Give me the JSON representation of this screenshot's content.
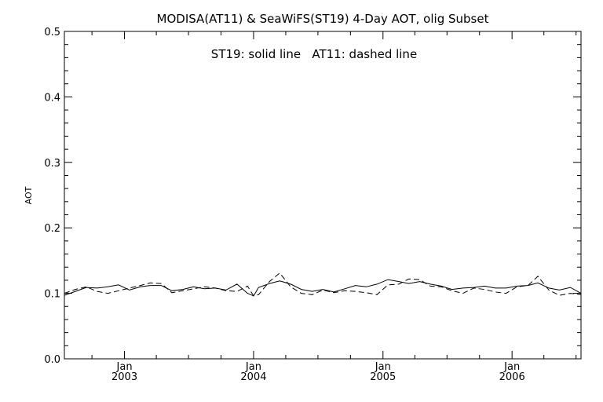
{
  "chart_data": {
    "type": "line",
    "title": "MODISA(AT11) & SeaWiFS(ST19) 4-Day AOT, olig Subset",
    "annotation": "ST19: solid line   AT11: dashed line",
    "xlabel": "",
    "ylabel": "AOT",
    "ylim": [
      0.0,
      0.5
    ],
    "xlim": [
      "2002-07-15",
      "2006-07-15"
    ],
    "yticks": [
      "0.0",
      "0.1",
      "0.2",
      "0.3",
      "0.4",
      "0.5"
    ],
    "xticks": [
      {
        "date": "2003-01-01",
        "month": "Jan",
        "year": "2003"
      },
      {
        "date": "2004-01-01",
        "month": "Jan",
        "year": "2004"
      },
      {
        "date": "2005-01-01",
        "month": "Jan",
        "year": "2005"
      },
      {
        "date": "2006-01-01",
        "month": "Jan",
        "year": "2006"
      }
    ],
    "grid": false,
    "legend": "none",
    "series": [
      {
        "style": "solid",
        "x": [
          "2002-07-15",
          "2002-08-15",
          "2002-09-15",
          "2002-10-15",
          "2002-11-15",
          "2002-12-15",
          "2003-01-15",
          "2003-02-15",
          "2003-03-15",
          "2003-04-15",
          "2003-05-15",
          "2003-06-15",
          "2003-07-15",
          "2003-08-15",
          "2003-09-15",
          "2003-10-15",
          "2003-11-15",
          "2003-12-15",
          "2004-01-01",
          "2004-01-15",
          "2004-02-15",
          "2004-03-15",
          "2004-04-15",
          "2004-05-15",
          "2004-06-15",
          "2004-07-15",
          "2004-08-15",
          "2004-09-15",
          "2004-10-15",
          "2004-11-15",
          "2004-12-15",
          "2005-01-15",
          "2005-02-15",
          "2005-03-15",
          "2005-04-15",
          "2005-05-15",
          "2005-06-15",
          "2005-07-15",
          "2005-08-15",
          "2005-09-15",
          "2005-10-15",
          "2005-11-15",
          "2005-12-15",
          "2006-01-15",
          "2006-02-15",
          "2006-03-15",
          "2006-04-15",
          "2006-05-15",
          "2006-06-15",
          "2006-07-15"
        ],
        "y": [
          0.097,
          0.103,
          0.109,
          0.108,
          0.11,
          0.113,
          0.105,
          0.11,
          0.112,
          0.112,
          0.104,
          0.106,
          0.11,
          0.107,
          0.108,
          0.105,
          0.114,
          0.1,
          0.096,
          0.109,
          0.115,
          0.119,
          0.114,
          0.106,
          0.103,
          0.106,
          0.102,
          0.107,
          0.112,
          0.11,
          0.114,
          0.121,
          0.118,
          0.115,
          0.118,
          0.114,
          0.111,
          0.106,
          0.108,
          0.109,
          0.111,
          0.108,
          0.108,
          0.111,
          0.112,
          0.116,
          0.108,
          0.105,
          0.109,
          0.1
        ]
      },
      {
        "style": "dashed",
        "x": [
          "2002-07-15",
          "2002-08-15",
          "2002-09-15",
          "2002-10-15",
          "2002-11-15",
          "2002-12-15",
          "2003-01-15",
          "2003-02-15",
          "2003-03-15",
          "2003-04-15",
          "2003-05-15",
          "2003-06-15",
          "2003-07-15",
          "2003-08-15",
          "2003-09-15",
          "2003-10-15",
          "2003-11-15",
          "2003-12-15",
          "2004-01-01",
          "2004-01-15",
          "2004-02-15",
          "2004-03-15",
          "2004-04-15",
          "2004-05-15",
          "2004-06-15",
          "2004-07-15",
          "2004-08-15",
          "2004-09-15",
          "2004-10-15",
          "2004-11-15",
          "2004-12-15",
          "2005-01-15",
          "2005-02-15",
          "2005-03-15",
          "2005-04-15",
          "2005-05-15",
          "2005-06-15",
          "2005-07-15",
          "2005-08-15",
          "2005-09-15",
          "2005-10-15",
          "2005-11-15",
          "2005-12-15",
          "2006-01-15",
          "2006-02-15",
          "2006-03-15",
          "2006-04-15",
          "2006-05-15",
          "2006-06-15",
          "2006-07-15"
        ],
        "y": [
          0.1,
          0.106,
          0.11,
          0.103,
          0.1,
          0.104,
          0.108,
          0.112,
          0.116,
          0.115,
          0.101,
          0.104,
          0.107,
          0.11,
          0.108,
          0.104,
          0.103,
          0.111,
          0.096,
          0.098,
          0.118,
          0.131,
          0.11,
          0.1,
          0.098,
          0.105,
          0.101,
          0.104,
          0.103,
          0.101,
          0.098,
          0.113,
          0.114,
          0.122,
          0.121,
          0.111,
          0.11,
          0.104,
          0.1,
          0.108,
          0.106,
          0.102,
          0.1,
          0.11,
          0.112,
          0.126,
          0.105,
          0.097,
          0.1,
          0.098
        ]
      }
    ]
  }
}
